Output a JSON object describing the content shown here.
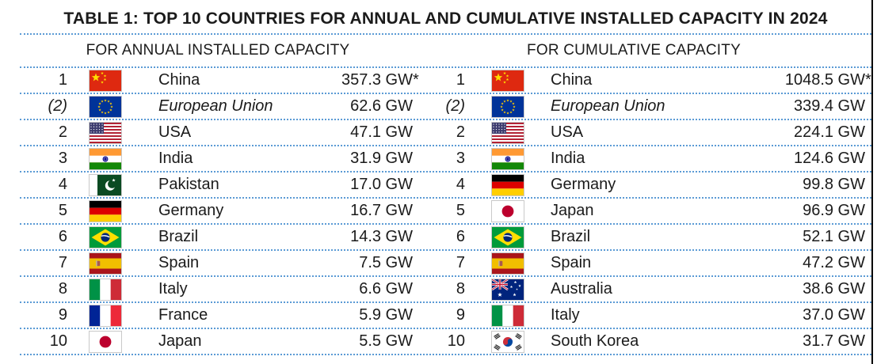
{
  "title": "TABLE 1: TOP 10 COUNTRIES FOR ANNUAL AND CUMULATIVE INSTALLED CAPACITY IN 2024",
  "units": "GW",
  "footnote_marker": "*",
  "colors": {
    "separator_dotted": "#5b9bd5",
    "text": "#1b1b1b",
    "page_edge_line": "#000000"
  },
  "annual": {
    "header": "FOR ANNUAL INSTALLED CAPACITY",
    "rows": [
      {
        "rank": "1",
        "flag": "china",
        "country": "China",
        "value": "357.3 GW",
        "note": "*"
      },
      {
        "rank": "(2)",
        "flag": "eu",
        "country": "European Union",
        "value": "62.6 GW",
        "italic": true
      },
      {
        "rank": "2",
        "flag": "usa",
        "country": "USA",
        "value": "47.1 GW"
      },
      {
        "rank": "3",
        "flag": "india",
        "country": "India",
        "value": "31.9 GW"
      },
      {
        "rank": "4",
        "flag": "pakistan",
        "country": "Pakistan",
        "value": "17.0 GW"
      },
      {
        "rank": "5",
        "flag": "germany",
        "country": "Germany",
        "value": "16.7 GW"
      },
      {
        "rank": "6",
        "flag": "brazil",
        "country": "Brazil",
        "value": "14.3 GW"
      },
      {
        "rank": "7",
        "flag": "spain",
        "country": "Spain",
        "value": "7.5 GW"
      },
      {
        "rank": "8",
        "flag": "italy",
        "country": "Italy",
        "value": "6.6 GW"
      },
      {
        "rank": "9",
        "flag": "france",
        "country": "France",
        "value": "5.9 GW"
      },
      {
        "rank": "10",
        "flag": "japan",
        "country": "Japan",
        "value": "5.5 GW"
      }
    ]
  },
  "cumulative": {
    "header": "FOR CUMULATIVE CAPACITY",
    "rows": [
      {
        "rank": "1",
        "flag": "china",
        "country": "China",
        "value": "1048.5 GW",
        "note": "*"
      },
      {
        "rank": "(2)",
        "flag": "eu",
        "country": "European Union",
        "value": "339.4 GW",
        "italic": true
      },
      {
        "rank": "2",
        "flag": "usa",
        "country": "USA",
        "value": "224.1 GW"
      },
      {
        "rank": "3",
        "flag": "india",
        "country": "India",
        "value": "124.6 GW"
      },
      {
        "rank": "4",
        "flag": "germany",
        "country": "Germany",
        "value": "99.8 GW"
      },
      {
        "rank": "5",
        "flag": "japan",
        "country": "Japan",
        "value": "96.9 GW"
      },
      {
        "rank": "6",
        "flag": "brazil",
        "country": "Brazil",
        "value": "52.1 GW"
      },
      {
        "rank": "7",
        "flag": "spain",
        "country": "Spain",
        "value": "47.2 GW"
      },
      {
        "rank": "8",
        "flag": "australia",
        "country": "Australia",
        "value": "38.6 GW"
      },
      {
        "rank": "9",
        "flag": "italy",
        "country": "Italy",
        "value": "37.0 GW"
      },
      {
        "rank": "10",
        "flag": "southkorea",
        "country": "South Korea",
        "value": "31.7 GW"
      }
    ]
  }
}
